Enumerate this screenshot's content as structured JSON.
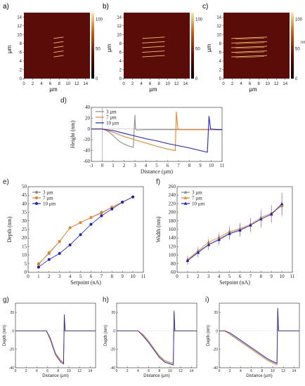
{
  "panel_labels": [
    "a)",
    "b)",
    "c)",
    "d)",
    "e)",
    "f)",
    "g)",
    "h)",
    "i)"
  ],
  "colors": {
    "afm_dark": "#5a0d08",
    "afm_line": "#f1c36b",
    "s3": "#8a8a8a",
    "s7": "#f07f1e",
    "s10": "#1a20c8"
  },
  "afm_panels": {
    "x_ticks": [
      "0",
      "2",
      "4",
      "6",
      "8",
      "10",
      "12",
      "14"
    ],
    "y_ticks": [
      "0",
      "2",
      "4",
      "6",
      "8",
      "10",
      "12",
      "14"
    ],
    "xlabel": "µm",
    "ylabel": "µm",
    "colorbar_ticks": [
      "0",
      "50",
      "100"
    ],
    "colorbar_unit": "nm",
    "scratch_count": 5
  },
  "chart_data": [
    {
      "id": "d",
      "type": "line",
      "xlabel": "Distance (µm)",
      "ylabel": "Height (nm)",
      "xlim": [
        -1,
        11
      ],
      "ylim": [
        -60,
        40
      ],
      "x_ticks": [
        "-1",
        "0",
        "1",
        "2",
        "3",
        "4",
        "5",
        "6",
        "7",
        "8",
        "9",
        "10",
        "11"
      ],
      "y_ticks": [
        "-60",
        "-40",
        "-20",
        "0",
        "20",
        "40"
      ],
      "legend": [
        "3 µm",
        "7 µm",
        "10 µm"
      ],
      "series": [
        {
          "name": "3 µm",
          "color_key": "s3",
          "x": [
            -1,
            0,
            0.5,
            1,
            1.5,
            2,
            2.5,
            2.85,
            3.0,
            3.05,
            3.2,
            4,
            6,
            8,
            10,
            11
          ],
          "y": [
            0,
            0,
            -4,
            -12,
            -22,
            -28,
            -32,
            -34,
            26,
            0,
            -2,
            -1,
            -1,
            -1,
            -1,
            -1
          ]
        },
        {
          "name": "7 µm",
          "color_key": "s7",
          "x": [
            -1,
            0,
            1,
            2,
            3,
            4,
            5,
            6,
            6.7,
            6.8,
            6.95,
            7.2,
            8,
            9,
            10,
            11
          ],
          "y": [
            0,
            0,
            -6,
            -14,
            -20,
            -26,
            -32,
            -37,
            -40,
            32,
            0,
            -1,
            -1,
            -1,
            -1,
            -1
          ]
        },
        {
          "name": "10 µm",
          "color_key": "s10",
          "x": [
            -1,
            0,
            1,
            2,
            3,
            4,
            5,
            6,
            7,
            8,
            9,
            9.65,
            9.8,
            9.95,
            10.5,
            11
          ],
          "y": [
            0,
            0,
            -3,
            -8,
            -13,
            -18,
            -22,
            -27,
            -31,
            -35,
            -40,
            -43,
            24,
            0,
            -1,
            -1
          ]
        }
      ]
    },
    {
      "id": "e",
      "type": "line",
      "xlabel": "Setpoint (nA)",
      "ylabel": "Depth (nm)",
      "xlim": [
        0,
        11
      ],
      "ylim": [
        0,
        50
      ],
      "x_ticks": [
        "0",
        "1",
        "2",
        "3",
        "4",
        "5",
        "6",
        "7",
        "8",
        "9",
        "10",
        "11"
      ],
      "y_ticks": [
        "0",
        "5",
        "10",
        "15",
        "20",
        "25",
        "30",
        "35",
        "40",
        "45",
        "50"
      ],
      "categories": [
        1,
        2,
        3,
        4,
        5,
        6,
        7,
        8,
        9,
        10
      ],
      "legend": [
        "3 µm",
        "7 µm",
        "10 µm"
      ],
      "series": [
        {
          "name": "3 µm",
          "color_key": "s3",
          "marker": "circle",
          "values": [
            5,
            11,
            18,
            26,
            29,
            32,
            35,
            38,
            41,
            44
          ]
        },
        {
          "name": "7 µm",
          "color_key": "s7",
          "marker": "circle",
          "values": [
            4.5,
            11.5,
            18,
            26,
            29,
            32,
            34.5,
            38,
            41,
            44
          ]
        },
        {
          "name": "10 µm",
          "color_key": "s10",
          "marker": "circle",
          "values": [
            3,
            7.5,
            11,
            16,
            22,
            28,
            33,
            37,
            41,
            44
          ]
        }
      ]
    },
    {
      "id": "f",
      "type": "line",
      "xlabel": "Setpoint (nA)",
      "ylabel": "Width (nm)",
      "xlim": [
        0,
        11
      ],
      "ylim": [
        60,
        260
      ],
      "x_ticks": [
        "0",
        "1",
        "2",
        "3",
        "4",
        "5",
        "6",
        "7",
        "8",
        "9",
        "10",
        "11"
      ],
      "y_ticks": [
        "60",
        "80",
        "100",
        "120",
        "140",
        "160",
        "180",
        "200",
        "220",
        "240",
        "260"
      ],
      "categories": [
        1,
        2,
        3,
        4,
        5,
        6,
        7,
        8,
        9,
        10
      ],
      "legend": [
        "3 µm",
        "7 µm",
        "10 µm"
      ],
      "series": [
        {
          "name": "3 µm",
          "color_key": "s3",
          "marker": "triangle",
          "values": [
            88,
            108,
            125,
            138,
            152,
            160,
            170,
            185,
            195,
            218
          ],
          "errors": [
            10,
            12,
            12,
            13,
            14,
            15,
            16,
            22,
            20,
            28
          ]
        },
        {
          "name": "7 µm",
          "color_key": "s7",
          "marker": "triangle",
          "values": [
            90,
            110,
            130,
            142,
            155,
            162,
            172,
            188,
            198,
            215
          ],
          "errors": [
            10,
            11,
            13,
            13,
            14,
            15,
            16,
            20,
            20,
            25
          ]
        },
        {
          "name": "10 µm",
          "color_key": "s10",
          "marker": "triangle",
          "values": [
            87,
            106,
            124,
            136,
            150,
            158,
            170,
            184,
            196,
            220
          ],
          "errors": [
            9,
            11,
            12,
            13,
            14,
            15,
            16,
            19,
            20,
            26
          ]
        }
      ]
    },
    {
      "id": "g",
      "type": "line",
      "xlabel": "Distance (µm)",
      "ylabel": "Depth (nm)",
      "xlim": [
        0,
        15
      ],
      "ylim": [
        -40,
        30
      ],
      "x_ticks": [
        "0",
        "2",
        "4",
        "6",
        "8",
        "10",
        "12",
        "14"
      ],
      "y_ticks": [
        "-40",
        "-20",
        "0",
        "20"
      ],
      "series": [
        {
          "name": "",
          "color_key": "s3",
          "x": [
            0,
            5.8,
            6.5,
            7.5,
            8.5,
            9.0,
            9.15,
            9.3,
            10,
            15
          ],
          "y": [
            0,
            0,
            -8,
            -25,
            -33,
            -35,
            15,
            0,
            0,
            0
          ]
        },
        {
          "name": "",
          "color_key": "s7",
          "x": [
            0,
            5.8,
            6.5,
            7.5,
            8.5,
            9.0,
            9.15,
            9.3,
            10,
            15
          ],
          "y": [
            0,
            0,
            -7,
            -24,
            -32,
            -34,
            12,
            0,
            0,
            0
          ]
        },
        {
          "name": "",
          "color_key": "s10",
          "x": [
            0,
            5.8,
            6.5,
            7.5,
            8.5,
            9.0,
            9.15,
            9.3,
            10,
            15
          ],
          "y": [
            0,
            0,
            -9,
            -26,
            -34,
            -36,
            18,
            0,
            0,
            0
          ]
        }
      ]
    },
    {
      "id": "h",
      "type": "line",
      "xlabel": "Distance (µm)",
      "ylabel": "Depth (nm)",
      "xlim": [
        0,
        15
      ],
      "ylim": [
        -40,
        30
      ],
      "x_ticks": [
        "0",
        "2",
        "4",
        "6",
        "8",
        "10",
        "12",
        "14"
      ],
      "y_ticks": [
        "-40",
        "-20",
        "0",
        "20"
      ],
      "series": [
        {
          "name": "",
          "color_key": "s3",
          "x": [
            0,
            4,
            5,
            6,
            7,
            8,
            9,
            10,
            10.6,
            10.75,
            10.9,
            12,
            15
          ],
          "y": [
            0,
            0,
            -5,
            -12,
            -20,
            -28,
            -33,
            -35,
            -36,
            20,
            0,
            0,
            0
          ]
        },
        {
          "name": "",
          "color_key": "s7",
          "x": [
            0,
            4,
            5,
            6,
            7,
            8,
            9,
            10,
            10.6,
            10.75,
            10.9,
            12,
            15
          ],
          "y": [
            0,
            0,
            -4,
            -11,
            -19,
            -27,
            -32,
            -34,
            -35,
            18,
            0,
            0,
            0
          ]
        },
        {
          "name": "",
          "color_key": "s10",
          "x": [
            0,
            4,
            5,
            6,
            7,
            8,
            9,
            10,
            10.6,
            10.75,
            10.9,
            12,
            15
          ],
          "y": [
            0,
            0,
            -6,
            -13,
            -21,
            -29,
            -34,
            -36,
            -37,
            22,
            0,
            0,
            0
          ]
        }
      ]
    },
    {
      "id": "i",
      "type": "line",
      "xlabel": "Distance (µm)",
      "ylabel": "Depth (nm)",
      "xlim": [
        0,
        15
      ],
      "ylim": [
        -40,
        30
      ],
      "x_ticks": [
        "0",
        "2",
        "4",
        "6",
        "8",
        "10",
        "12",
        "14"
      ],
      "y_ticks": [
        "-40",
        "-20",
        "0",
        "20"
      ],
      "series": [
        {
          "name": "",
          "color_key": "s3",
          "x": [
            0,
            1,
            2,
            3,
            4,
            5,
            6,
            7,
            8,
            9,
            10,
            10.8,
            10.95,
            11.1,
            12,
            15
          ],
          "y": [
            0,
            0,
            -3,
            -7,
            -11,
            -15,
            -19,
            -23,
            -27,
            -31,
            -34,
            -36,
            22,
            0,
            0,
            0
          ]
        },
        {
          "name": "",
          "color_key": "s7",
          "x": [
            0,
            1,
            2,
            3,
            4,
            5,
            6,
            7,
            8,
            9,
            10,
            10.8,
            10.95,
            11.1,
            12,
            15
          ],
          "y": [
            0,
            0,
            -4,
            -8,
            -12,
            -16,
            -20,
            -24,
            -28,
            -32,
            -35,
            -37,
            24,
            0,
            0,
            0
          ]
        },
        {
          "name": "",
          "color_key": "s10",
          "x": [
            0,
            1,
            2,
            3,
            4,
            5,
            6,
            7,
            8,
            9,
            10,
            10.8,
            10.95,
            11.1,
            12,
            15
          ],
          "y": [
            0,
            0,
            -2,
            -6,
            -10,
            -14,
            -18,
            -22,
            -26,
            -30,
            -33,
            -35,
            25,
            0,
            0,
            0
          ]
        }
      ]
    }
  ]
}
